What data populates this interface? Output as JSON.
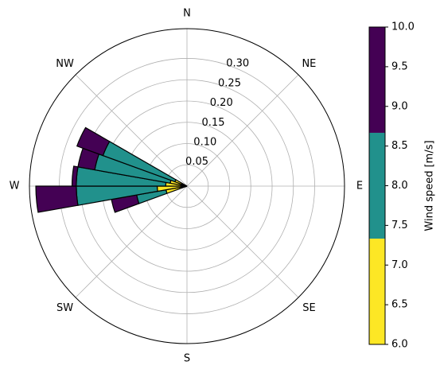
{
  "chart_data": {
    "type": "windrose",
    "directions": [
      "N",
      "NE",
      "E",
      "SE",
      "S",
      "SW",
      "W",
      "NW"
    ],
    "radial_ticks": [
      0.05,
      0.1,
      0.15,
      0.2,
      0.25,
      0.3
    ],
    "radial_tick_labels": [
      "0.05",
      "0.10",
      "0.15",
      "0.20",
      "0.25",
      "0.30"
    ],
    "rmax": 0.37,
    "grid": true,
    "bins": [
      {
        "range": [
          6.0,
          7.333
        ],
        "color": "#fde725"
      },
      {
        "range": [
          7.333,
          8.667
        ],
        "color": "#21918c"
      },
      {
        "range": [
          8.667,
          10.0
        ],
        "color": "#440154"
      }
    ],
    "sectors": [
      {
        "direction_deg": 255,
        "width_deg": 10,
        "stacks": [
          0.05,
          0.12,
          0.18
        ]
      },
      {
        "direction_deg": 265,
        "width_deg": 10,
        "stacks": [
          0.07,
          0.26,
          0.355
        ]
      },
      {
        "direction_deg": 275,
        "width_deg": 10,
        "stacks": [
          0.05,
          0.26,
          0.27
        ]
      },
      {
        "direction_deg": 285,
        "width_deg": 10,
        "stacks": [
          0.04,
          0.22,
          0.26
        ]
      },
      {
        "direction_deg": 295,
        "width_deg": 10,
        "stacks": [
          0.03,
          0.21,
          0.275
        ]
      }
    ],
    "colorbar": {
      "label": "Wind speed [m/s]",
      "min": 6.0,
      "max": 10.0,
      "ticks": [
        "6.0",
        "6.5",
        "7.0",
        "7.5",
        "8.0",
        "8.5",
        "9.0",
        "9.5",
        "10.0"
      ]
    }
  }
}
